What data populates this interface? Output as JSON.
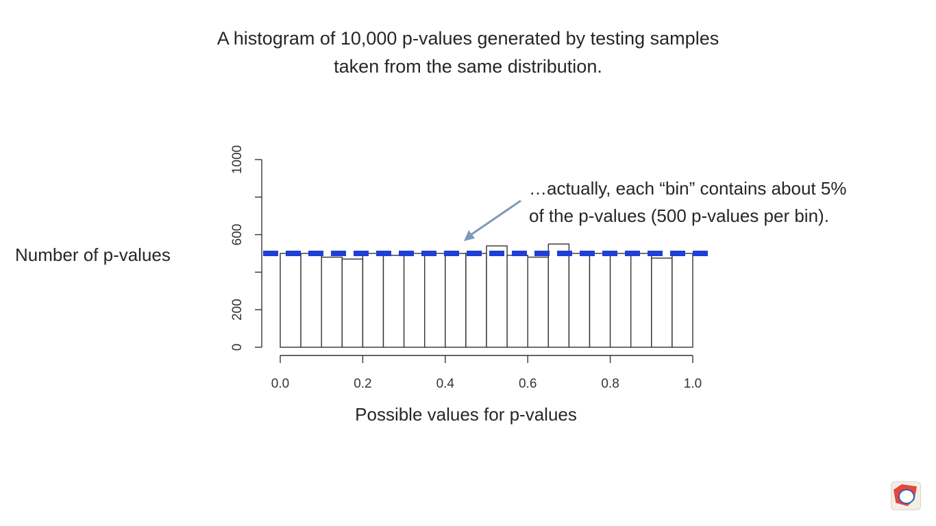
{
  "title_line1": "A histogram of 10,000 p-values generated by testing samples",
  "title_line2": "taken from the same distribution.",
  "annotation_line1": "…actually, each “bin” contains about 5%",
  "annotation_line2": "of the p-values (500 p-values per bin).",
  "colors": {
    "reference_line": "#1f3fd6",
    "arrow": "#7f97ba",
    "bar_stroke": "#333333"
  },
  "chart_data": {
    "type": "bar",
    "title": "A histogram of 10,000 p-values generated by testing samples taken from the same distribution.",
    "xlabel": "Possible values for p-values",
    "ylabel": "Number of p-values",
    "bin_edges": [
      0.0,
      0.05,
      0.1,
      0.15,
      0.2,
      0.25,
      0.3,
      0.35,
      0.4,
      0.45,
      0.5,
      0.55,
      0.6,
      0.65,
      0.7,
      0.75,
      0.8,
      0.85,
      0.9,
      0.95,
      1.0
    ],
    "values": [
      500,
      500,
      480,
      470,
      500,
      490,
      500,
      500,
      500,
      500,
      540,
      490,
      480,
      550,
      500,
      500,
      500,
      500,
      475,
      500
    ],
    "xlim": [
      0,
      1
    ],
    "ylim": [
      0,
      1000
    ],
    "x_ticks": [
      "0.0",
      "0.2",
      "0.4",
      "0.6",
      "0.8",
      "1.0"
    ],
    "y_ticks": [
      "0",
      "200",
      "600",
      "1000"
    ],
    "y_tick_values": [
      0,
      200,
      600,
      1000
    ],
    "y_minor_tick_values": [
      0,
      200,
      400,
      600,
      800,
      1000
    ],
    "reference_line": {
      "value": 500,
      "style": "dashed"
    },
    "grid": false,
    "legend": "none"
  }
}
